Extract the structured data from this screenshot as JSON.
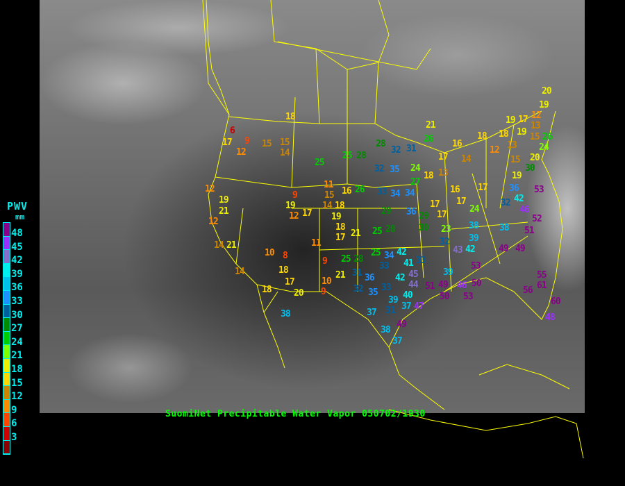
{
  "caption": "SuomiNet Precipitable Water Vapor 050702/1930",
  "legend": {
    "title": "PWV",
    "unit": "mm",
    "labels": [
      "48",
      "45",
      "42",
      "39",
      "36",
      "33",
      "30",
      "27",
      "24",
      "21",
      "18",
      "15",
      "12",
      "9",
      "6",
      "3"
    ],
    "colors": [
      "#8b008b",
      "#9b30ff",
      "#8470cc",
      "#00eeee",
      "#00bfee",
      "#1e90ff",
      "#00609f",
      "#008b00",
      "#00cd00",
      "#7fff00",
      "#eeee00",
      "#ffd700",
      "#cd8500",
      "#ff8c00",
      "#ff4500",
      "#cd0000",
      "#8b0000"
    ]
  },
  "border_color": "#ffff00",
  "stations": [
    18,
    6,
    9,
    17,
    12,
    15,
    15,
    14,
    25,
    25,
    28,
    28,
    32,
    31,
    32,
    35,
    24,
    12,
    19,
    21,
    12,
    9,
    19,
    12,
    17,
    11,
    15,
    14,
    16,
    26,
    33,
    34,
    34,
    18,
    19,
    18,
    17,
    21,
    29,
    36,
    29,
    30,
    14,
    21,
    11,
    10,
    8,
    9,
    25,
    28,
    18,
    14,
    17,
    20,
    18,
    10,
    9,
    21,
    31,
    36,
    32,
    35,
    33,
    38,
    37,
    25,
    28,
    25,
    34,
    42,
    33,
    41,
    33,
    20,
    19,
    19,
    17,
    12,
    13,
    19,
    15,
    26,
    21,
    26,
    18,
    18,
    16,
    13,
    12,
    17,
    14,
    24,
    20,
    15,
    30,
    18,
    13,
    27,
    19,
    16,
    17,
    36,
    53,
    42,
    32,
    17,
    17,
    17,
    24,
    46,
    52,
    38,
    38,
    51,
    23,
    32,
    39,
    42,
    43,
    49,
    49,
    53,
    39,
    45,
    44,
    51,
    49,
    50,
    46,
    50,
    53,
    56,
    55,
    61,
    60,
    48,
    42,
    40,
    39,
    37,
    31,
    47,
    49,
    38,
    37
  ]
}
